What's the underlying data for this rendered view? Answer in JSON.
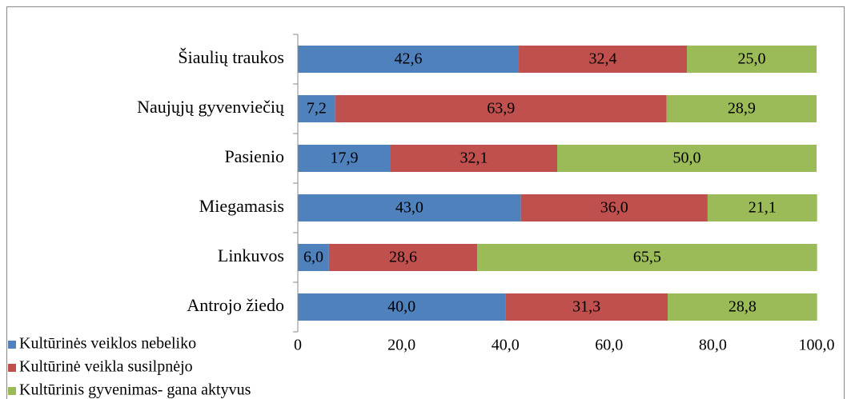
{
  "chart_data": {
    "type": "stacked_bar_horizontal",
    "categories": [
      "Šiaulių traukos",
      "Naujųjų gyvenviečių",
      "Pasienio",
      "Miegamasis",
      "Linkuvos",
      "Antrojo žiedo"
    ],
    "series": [
      {
        "name": "Kultūrinės veiklos nebeliko",
        "color": "#4f81bd",
        "values": [
          42.6,
          7.2,
          17.9,
          43.0,
          6.0,
          40.0
        ],
        "value_labels": [
          "42,6",
          "7,2",
          "17,9",
          "43,0",
          "6,0",
          "40,0"
        ]
      },
      {
        "name": "Kultūrinė veikla susilpnėjo",
        "color": "#c0504d",
        "values": [
          32.4,
          63.9,
          32.1,
          36.0,
          28.6,
          31.3
        ],
        "value_labels": [
          "32,4",
          "63,9",
          "32,1",
          "36,0",
          "28,6",
          "31,3"
        ]
      },
      {
        "name": "Kultūrinis gyvenimas- gana aktyvus",
        "color": "#9bbb59",
        "values": [
          25.0,
          28.9,
          50.0,
          21.1,
          65.5,
          28.8
        ],
        "value_labels": [
          "25,0",
          "28,9",
          "50,0",
          "21,1",
          "65,5",
          "28,8"
        ]
      }
    ],
    "xlim": [
      0,
      100
    ],
    "xticks": [
      0,
      {
        "value": 20,
        "label": "20,0"
      },
      {
        "value": 40,
        "label": "40,0"
      },
      {
        "value": 60,
        "label": "60,0"
      },
      {
        "value": 80,
        "label": "80,0"
      },
      {
        "value": 100,
        "label": "100,0"
      }
    ],
    "legend": "bottom-left"
  }
}
